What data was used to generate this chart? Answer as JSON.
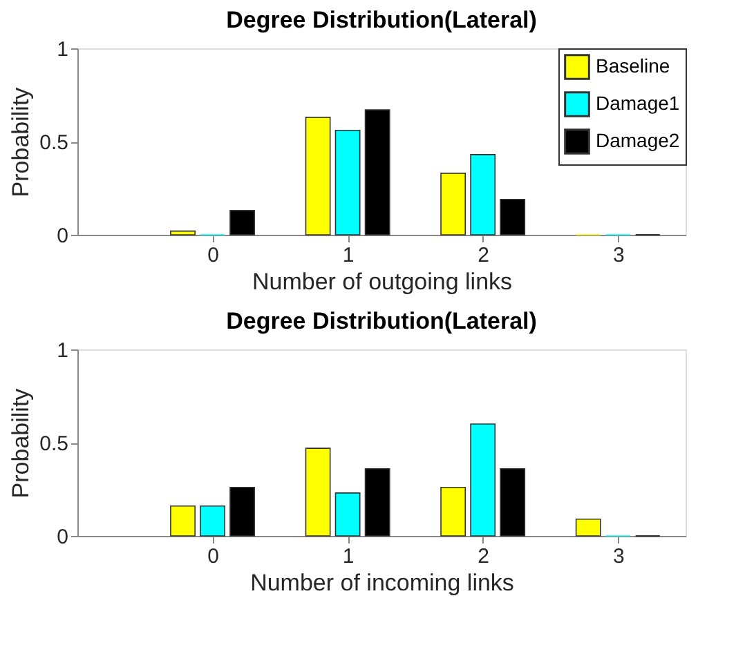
{
  "chart_data": [
    {
      "type": "bar",
      "title": "Degree Distribution(Lateral)",
      "xlabel": "Number of outgoing links",
      "ylabel": "Probability",
      "x": [
        0,
        1,
        2,
        3
      ],
      "xlim": [
        -1,
        3.5
      ],
      "xticks": [
        0,
        1,
        2,
        3
      ],
      "ylim": [
        0,
        1
      ],
      "yticks": [
        0,
        0.5,
        1
      ],
      "grid": false,
      "legend": "top right",
      "series": [
        {
          "name": "Baseline",
          "color": "#ffff00",
          "values": [
            0.02,
            0.63,
            0.33,
            0
          ]
        },
        {
          "name": "Damage1",
          "color": "#00ffff",
          "values": [
            0,
            0.56,
            0.43,
            0
          ]
        },
        {
          "name": "Damage2",
          "color": "#000000",
          "values": [
            0.13,
            0.67,
            0.19,
            0
          ]
        }
      ]
    },
    {
      "type": "bar",
      "title": "Degree Distribution(Lateral)",
      "xlabel": "Number of incoming links",
      "ylabel": "Probability",
      "x": [
        0,
        1,
        2,
        3
      ],
      "xlim": [
        -1,
        3.5
      ],
      "xticks": [
        0,
        1,
        2,
        3
      ],
      "ylim": [
        0,
        1
      ],
      "yticks": [
        0,
        0.5,
        1
      ],
      "grid": false,
      "legend": "top right",
      "series": [
        {
          "name": "Baseline",
          "color": "#ffff00",
          "values": [
            0.16,
            0.47,
            0.26,
            0.09
          ]
        },
        {
          "name": "Damage1",
          "color": "#00ffff",
          "values": [
            0.16,
            0.23,
            0.6,
            0
          ]
        },
        {
          "name": "Damage2",
          "color": "#000000",
          "values": [
            0.26,
            0.36,
            0.36,
            0
          ]
        }
      ]
    }
  ]
}
